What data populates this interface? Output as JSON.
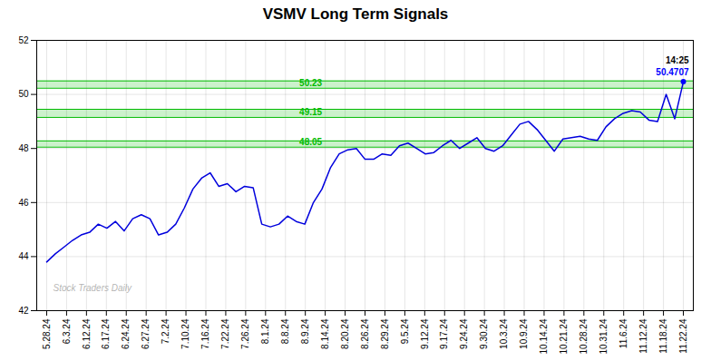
{
  "chart_data": {
    "type": "line",
    "title": "VSMV Long Term Signals",
    "color": "#0000dd",
    "xlim": [
      -0.5,
      32.5
    ],
    "xticks": [
      {
        "value": 0,
        "label": "5.28.24"
      },
      {
        "value": 1,
        "label": "6.3.24"
      },
      {
        "value": 2,
        "label": "6.12.24"
      },
      {
        "value": 3,
        "label": "6.17.24"
      },
      {
        "value": 4,
        "label": "6.24.24"
      },
      {
        "value": 5,
        "label": "6.27.24"
      },
      {
        "value": 6,
        "label": "7.2.24"
      },
      {
        "value": 7,
        "label": "7.10.24"
      },
      {
        "value": 8,
        "label": "7.16.24"
      },
      {
        "value": 9,
        "label": "7.22.24"
      },
      {
        "value": 10,
        "label": "7.26.24"
      },
      {
        "value": 11,
        "label": "8.1.24"
      },
      {
        "value": 12,
        "label": "8.8.24"
      },
      {
        "value": 13,
        "label": "8.9.24"
      },
      {
        "value": 14,
        "label": "8.14.24"
      },
      {
        "value": 15,
        "label": "8.20.24"
      },
      {
        "value": 16,
        "label": "8.26.24"
      },
      {
        "value": 17,
        "label": "8.29.24"
      },
      {
        "value": 18,
        "label": "9.5.24"
      },
      {
        "value": 19,
        "label": "9.12.24"
      },
      {
        "value": 20,
        "label": "9.17.24"
      },
      {
        "value": 21,
        "label": "9.24.24"
      },
      {
        "value": 22,
        "label": "9.30.24"
      },
      {
        "value": 23,
        "label": "10.3.24"
      },
      {
        "value": 24,
        "label": "10.9.24"
      },
      {
        "value": 25,
        "label": "10.14.24"
      },
      {
        "value": 26,
        "label": "10.21.24"
      },
      {
        "value": 27,
        "label": "10.28.24"
      },
      {
        "value": 28,
        "label": "10.31.24"
      },
      {
        "value": 29,
        "label": "11.6.24"
      },
      {
        "value": 30,
        "label": "11.12.24"
      },
      {
        "value": 31,
        "label": "11.18.24"
      },
      {
        "value": 32,
        "label": "11.22.24"
      }
    ],
    "values": [
      43.8,
      44.1,
      44.35,
      44.6,
      44.8,
      44.9,
      45.2,
      45.05,
      45.3,
      44.95,
      45.4,
      45.55,
      45.4,
      44.8,
      44.9,
      45.2,
      45.8,
      46.5,
      46.9,
      47.1,
      46.6,
      46.7,
      46.4,
      46.6,
      46.55,
      45.2,
      45.1,
      45.2,
      45.5,
      45.3,
      45.2,
      46.0,
      46.5,
      47.3,
      47.8,
      47.95,
      48.0,
      47.6,
      47.6,
      47.8,
      47.75,
      48.1,
      48.2,
      48.0,
      47.8,
      47.85,
      48.1,
      48.3,
      48.0,
      48.2,
      48.4,
      48.0,
      47.9,
      48.1,
      48.5,
      48.9,
      49.0,
      48.7,
      48.3,
      47.9,
      48.35,
      48.4,
      48.45,
      48.35,
      48.3,
      48.8,
      49.1,
      49.3,
      49.4,
      49.35,
      49.05,
      49.0,
      50.0,
      49.1,
      50.47
    ],
    "ylim": [
      42,
      52
    ],
    "yticks": [
      42,
      44,
      46,
      48,
      50,
      52
    ],
    "grid": true,
    "bands": [
      {
        "y": 50.23,
        "y_top": 50.5,
        "label": "50.23",
        "color": "#00bb00"
      },
      {
        "y": 49.15,
        "y_top": 49.45,
        "label": "49.15",
        "color": "#00bb00"
      },
      {
        "y": 48.05,
        "y_top": 48.28,
        "label": "48.05",
        "color": "#00bb00"
      }
    ],
    "last_point": {
      "time": "14:25",
      "price": "50.4707",
      "color": "#0000ff"
    },
    "watermark": "Stock Traders Daily"
  }
}
